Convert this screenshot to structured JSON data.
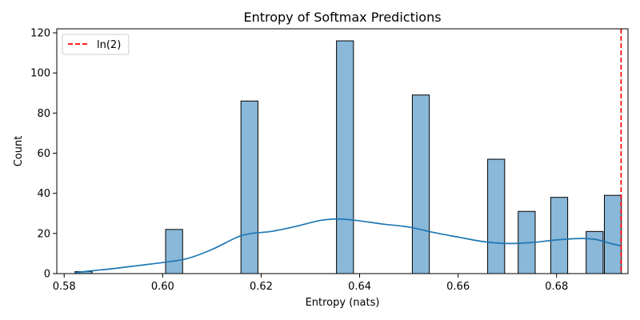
{
  "chart_data": {
    "type": "bar",
    "title": "Entropy of Softmax Predictions",
    "xlabel": "Entropy (nats)",
    "ylabel": "Count",
    "xlim": [
      0.5785,
      0.6945
    ],
    "ylim": [
      0,
      122
    ],
    "xticks": [
      0.58,
      0.6,
      0.62,
      0.64,
      0.66,
      0.68
    ],
    "xtick_labels": [
      "0.58",
      "0.60",
      "0.62",
      "0.64",
      "0.66",
      "0.68"
    ],
    "yticks": [
      0,
      20,
      40,
      60,
      80,
      100,
      120
    ],
    "ytick_labels": [
      "0",
      "20",
      "40",
      "60",
      "80",
      "100",
      "120"
    ],
    "bin_width": 0.00345,
    "bins": [
      {
        "x0": 0.5822,
        "count": 1
      },
      {
        "x0": 0.6006,
        "count": 22
      },
      {
        "x0": 0.6159,
        "count": 86
      },
      {
        "x0": 0.6353,
        "count": 116
      },
      {
        "x0": 0.6507,
        "count": 89
      },
      {
        "x0": 0.666,
        "count": 57
      },
      {
        "x0": 0.6722,
        "count": 31
      },
      {
        "x0": 0.6788,
        "count": 38
      },
      {
        "x0": 0.686,
        "count": 21
      },
      {
        "x0": 0.6897,
        "count": 39
      }
    ],
    "kde": {
      "name": "KDE",
      "x": [
        0.5822,
        0.586,
        0.59,
        0.595,
        0.6,
        0.605,
        0.61,
        0.615,
        0.618,
        0.622,
        0.627,
        0.632,
        0.636,
        0.64,
        0.645,
        0.65,
        0.655,
        0.66,
        0.665,
        0.67,
        0.675,
        0.68,
        0.685,
        0.688,
        0.691,
        0.6932
      ],
      "y": [
        0.5,
        1.5,
        2.5,
        4.0,
        5.5,
        7.5,
        12.0,
        18.0,
        20.0,
        21.0,
        23.5,
        26.5,
        27.2,
        26.3,
        24.6,
        23.2,
        20.5,
        18.2,
        16.0,
        15.0,
        15.5,
        16.8,
        17.5,
        17.0,
        15.0,
        13.8
      ]
    },
    "reference_line": {
      "label": "ln(2)",
      "x": 0.6931,
      "color": "#ff0000",
      "style": "dashed"
    },
    "legend": {
      "placement": "top-left",
      "entries": [
        "ln(2)"
      ]
    },
    "colors": {
      "bar_fill": "#8ab8d9",
      "bar_edge": "#000000",
      "kde_line": "#1f77b4"
    },
    "grid": false
  }
}
